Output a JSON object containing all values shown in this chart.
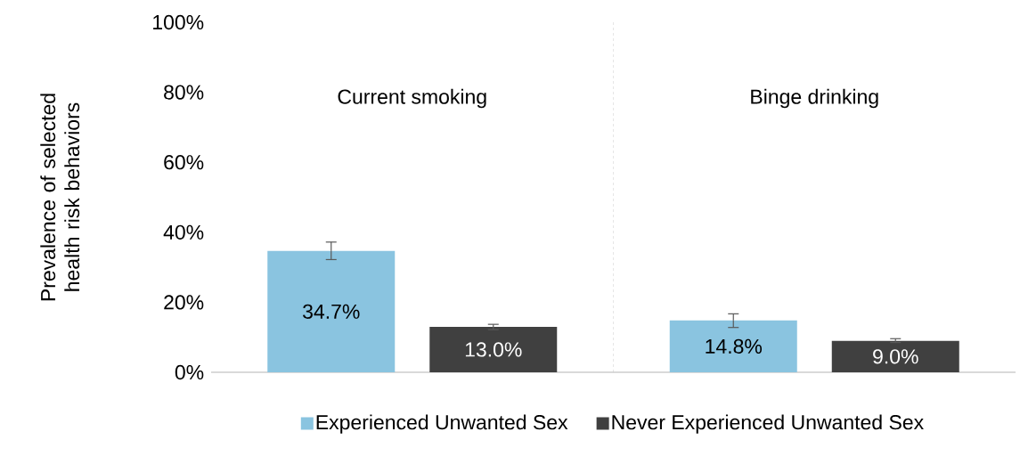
{
  "chart_data": {
    "type": "bar",
    "ylabel": "Prevalence of selected health risk behaviors",
    "categories": [
      "Current smoking",
      "Binge drinking"
    ],
    "series": [
      {
        "name": "Experienced Unwanted Sex",
        "color": "#8ac4e0",
        "values": [
          34.7,
          14.8
        ],
        "value_labels": [
          "34.7%",
          "14.8%"
        ],
        "errors": [
          [
            32.2,
            37.2
          ],
          [
            12.8,
            16.7
          ]
        ]
      },
      {
        "name": "Never Experienced Unwanted Sex",
        "color": "#404040",
        "values": [
          13.0,
          9.0
        ],
        "value_labels": [
          "13.0%",
          "9.0%"
        ],
        "errors": [
          [
            12.2,
            13.7
          ],
          [
            8.5,
            9.6
          ]
        ]
      }
    ],
    "ylim": [
      0,
      100
    ],
    "yticks": [
      {
        "value": 0,
        "label": "0%"
      },
      {
        "value": 20,
        "label": "20%"
      },
      {
        "value": 40,
        "label": "40%"
      },
      {
        "value": 60,
        "label": "60%"
      },
      {
        "value": 80,
        "label": "80%"
      },
      {
        "value": 100,
        "label": "100%"
      }
    ],
    "grid": false,
    "legend": "bottom"
  }
}
